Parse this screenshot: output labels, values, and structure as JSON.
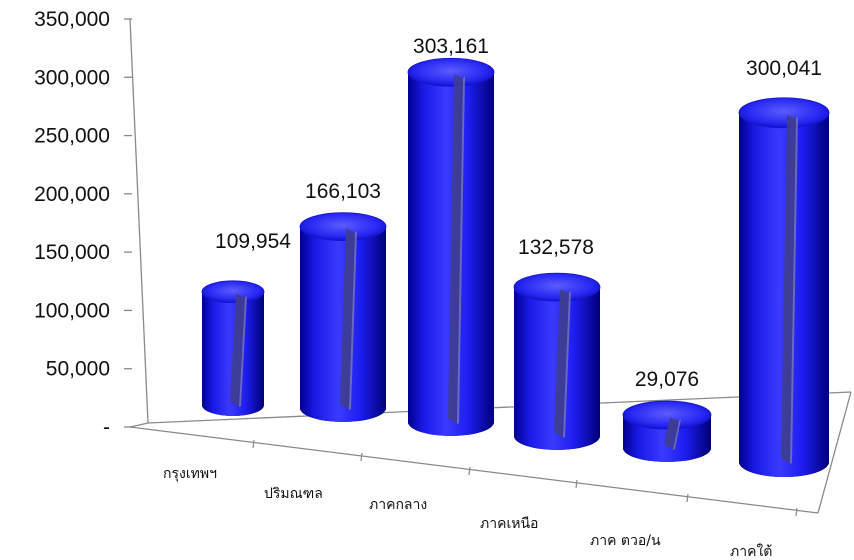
{
  "chart_data": {
    "type": "bar",
    "style": "3d-cylinder",
    "categories": [
      "กรุงเทพฯ",
      "ปริมณฑล",
      "ภาคกลาง",
      "ภาคเหนือ",
      "ภาค ตวอ/น",
      "ภาคใต้"
    ],
    "values": [
      109954,
      166103,
      303161,
      132578,
      29076,
      300041
    ],
    "value_labels": [
      "109,954",
      "166,103",
      "303,161",
      "132,578",
      "29,076",
      "300,041"
    ],
    "yticks": [
      "-",
      "50,000",
      "100,000",
      "150,000",
      "200,000",
      "250,000",
      "300,000",
      "350,000"
    ],
    "ylim": [
      0,
      350000
    ],
    "title": "",
    "xlabel": "",
    "ylabel": "",
    "grid": false,
    "legend": "none",
    "colors": {
      "bar": "#1d1df0",
      "bar_dark": "#00008a",
      "bar_light": "#8a8aff",
      "highlight": "#4a4a8c"
    }
  }
}
